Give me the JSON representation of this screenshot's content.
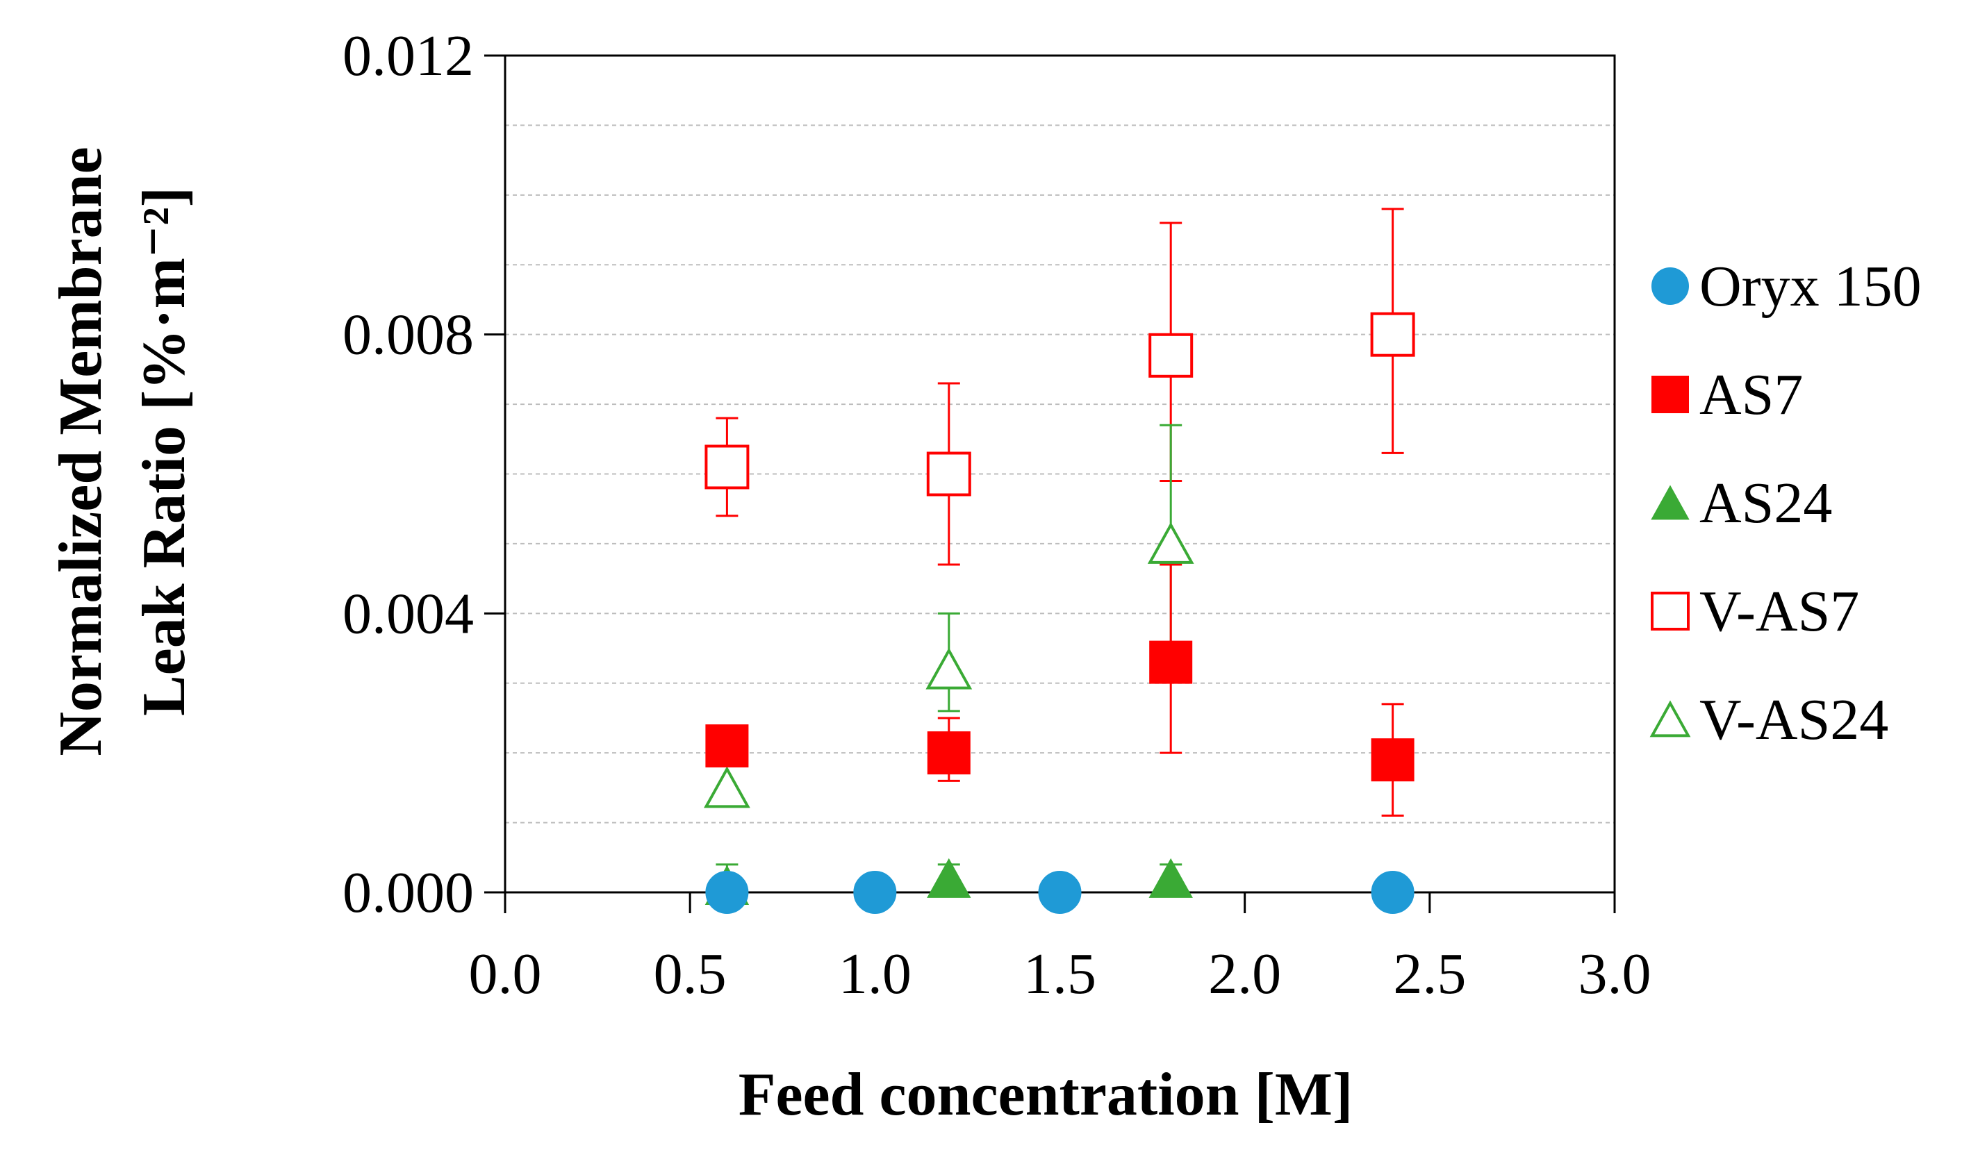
{
  "chart_data": {
    "type": "scatter",
    "xlabel": "Feed concentration  [M]",
    "ylabel_line1": "Normalized Membrane",
    "ylabel_line2": "Leak Ratio  [%·m⁻²]",
    "xlim": [
      0.0,
      3.0
    ],
    "ylim": [
      0.0,
      0.012
    ],
    "xticks": [
      "0.0",
      "0.5",
      "1.0",
      "1.5",
      "2.0",
      "2.5",
      "3.0"
    ],
    "yticks": [
      "0.000",
      "0.004",
      "0.008",
      "0.012"
    ],
    "minor_gridlines_y": true,
    "legend_position": "right",
    "series": [
      {
        "name": "Oryx 150",
        "marker": "circle",
        "filled": true,
        "color": "#1f9ad6",
        "points": [
          {
            "x": 0.6,
            "y": 0.0
          },
          {
            "x": 1.0,
            "y": 0.0
          },
          {
            "x": 1.5,
            "y": 0.0
          },
          {
            "x": 2.4,
            "y": 0.0
          }
        ]
      },
      {
        "name": "AS7",
        "marker": "square",
        "filled": true,
        "color": "#ff0000",
        "points": [
          {
            "x": 0.6,
            "y": 0.0021
          },
          {
            "x": 1.2,
            "y": 0.002,
            "err_low": 0.0016,
            "err_high": 0.0025
          },
          {
            "x": 1.8,
            "y": 0.0033,
            "err_low": 0.002,
            "err_high": 0.0047
          },
          {
            "x": 2.4,
            "y": 0.0019,
            "err_low": 0.0011,
            "err_high": 0.0027
          }
        ]
      },
      {
        "name": "AS24",
        "marker": "triangle",
        "filled": true,
        "color": "#3aaa35",
        "points": [
          {
            "x": 0.6,
            "y": 0.0001,
            "err_low": 0.0,
            "err_high": 0.0004
          },
          {
            "x": 1.2,
            "y": 0.0002,
            "err_low": 0.0,
            "err_high": 0.0004
          },
          {
            "x": 1.8,
            "y": 0.0002,
            "err_low": 0.0,
            "err_high": 0.0004
          }
        ]
      },
      {
        "name": "V-AS7",
        "marker": "square",
        "filled": false,
        "color": "#ff0000",
        "points": [
          {
            "x": 0.6,
            "y": 0.0061,
            "err_low": 0.0054,
            "err_high": 0.0068
          },
          {
            "x": 1.2,
            "y": 0.006,
            "err_low": 0.0047,
            "err_high": 0.0073
          },
          {
            "x": 1.8,
            "y": 0.0077,
            "err_low": 0.0059,
            "err_high": 0.0096
          },
          {
            "x": 2.4,
            "y": 0.008,
            "err_low": 0.0063,
            "err_high": 0.0098
          }
        ]
      },
      {
        "name": "V-AS24",
        "marker": "triangle",
        "filled": false,
        "color": "#3aaa35",
        "points": [
          {
            "x": 0.6,
            "y": 0.0015
          },
          {
            "x": 1.2,
            "y": 0.0032,
            "err_low": 0.0026,
            "err_high": 0.004
          },
          {
            "x": 1.8,
            "y": 0.005,
            "err_low": 0.0034,
            "err_high": 0.0067
          }
        ]
      }
    ]
  }
}
